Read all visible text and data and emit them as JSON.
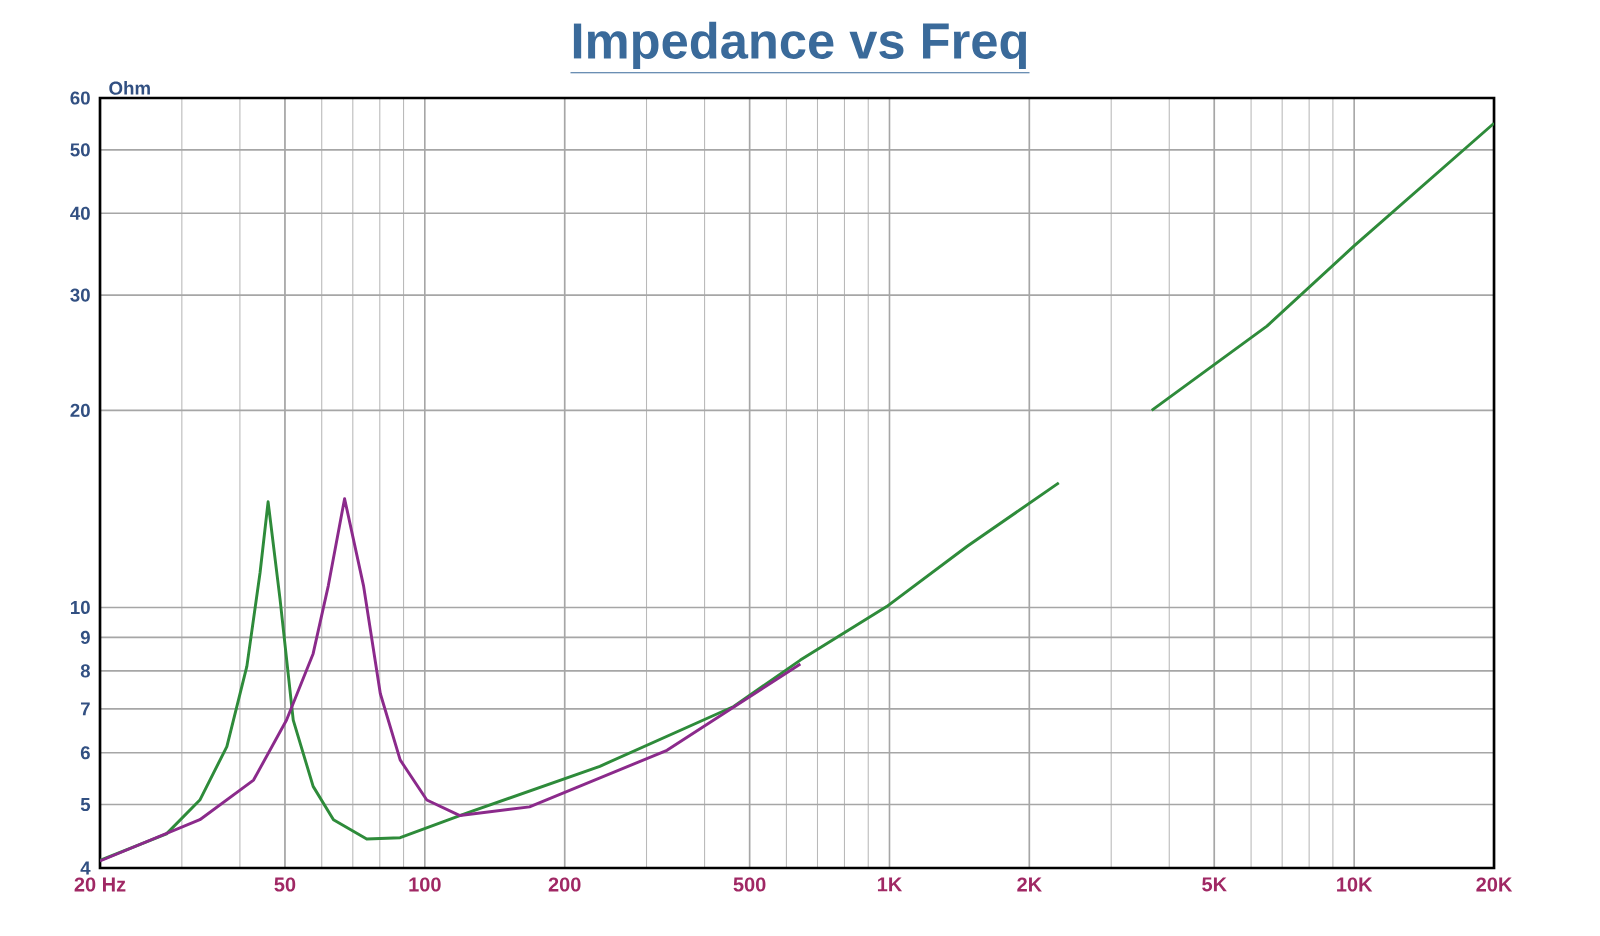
{
  "chart_data": {
    "type": "line",
    "title": "Impedance vs Freq",
    "ylabel": "Ohm",
    "log": "xy",
    "grid": true,
    "marker": "none",
    "line_style": "solid",
    "xlim": [
      20,
      20000
    ],
    "ylim": [
      4,
      60
    ],
    "xticks": [
      {
        "value": 20,
        "label": "20  Hz"
      },
      50,
      100,
      200,
      500,
      {
        "value": 1000,
        "label": "1K"
      },
      {
        "value": 2000,
        "label": "2K"
      },
      {
        "value": 5000,
        "label": "5K"
      },
      {
        "value": 10000,
        "label": "10K"
      },
      {
        "value": 20000,
        "label": "20K"
      }
    ],
    "yticks": [
      4,
      5,
      6,
      7,
      8,
      9,
      10,
      20,
      30,
      40,
      50,
      60
    ],
    "series": [
      {
        "color": "#2e8b3a",
        "x": [
          20,
          27.8,
          32.8,
          37.5,
          41.4,
          44.2,
          46,
          48.8,
          52.1,
          57.5,
          63.6,
          75,
          88.5,
          123,
          238,
          462,
          643,
          986,
          1470,
          2314,
          3000,
          3667,
          6490,
          9970,
          20000
        ],
        "values": [
          4.11,
          4.51,
          5.08,
          6.13,
          8.13,
          11.3,
          14.5,
          10.3,
          6.73,
          5.33,
          4.74,
          4.43,
          4.45,
          4.85,
          5.72,
          7.06,
          8.31,
          10.03,
          12.4,
          15.5,
          null,
          20.0,
          26.9,
          35.6,
          54.9
        ]
      },
      {
        "color": "#8b2a8b",
        "x": [
          20,
          32.8,
          42.8,
          50.4,
          57.5,
          62,
          67.2,
          73.8,
          80.2,
          88.5,
          101,
          119,
          168,
          332,
          643
        ],
        "values": [
          4.1,
          4.74,
          5.45,
          6.73,
          8.5,
          10.8,
          14.66,
          10.8,
          7.39,
          5.85,
          5.08,
          4.81,
          4.96,
          6.05,
          8.2
        ]
      }
    ]
  }
}
